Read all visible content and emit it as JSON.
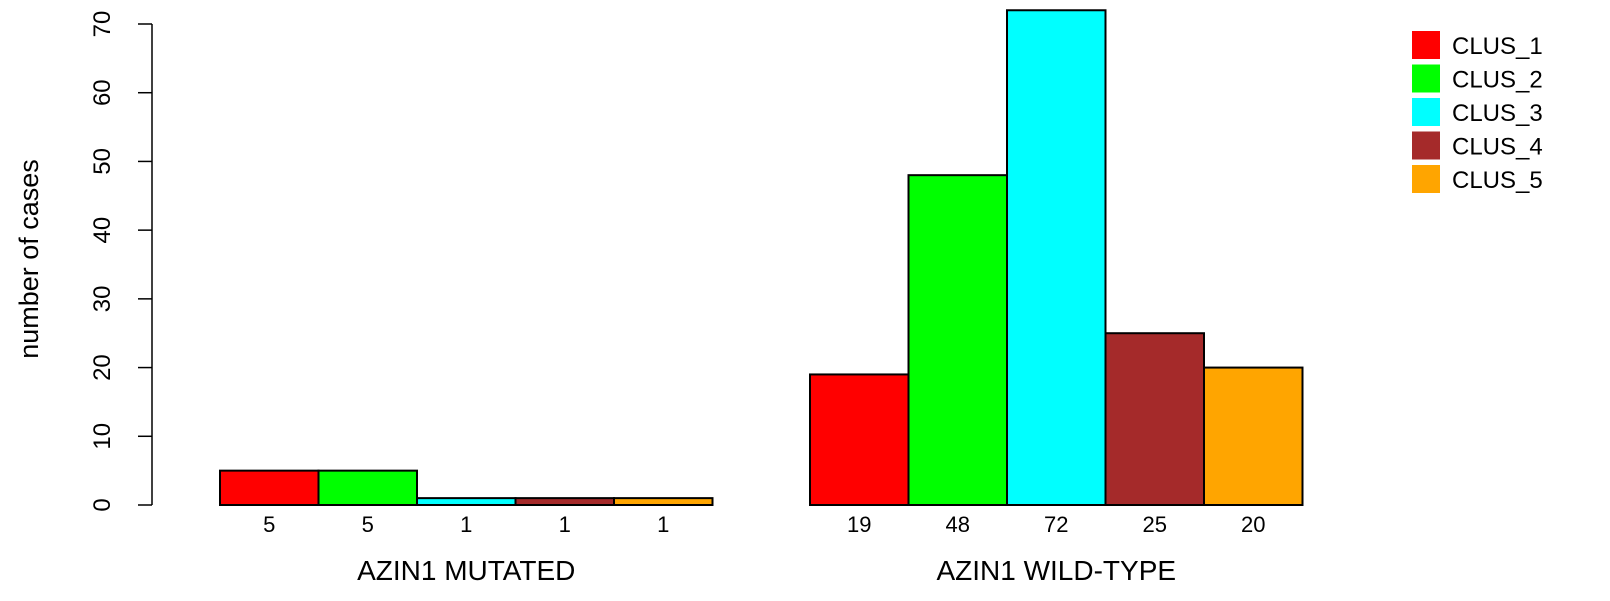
{
  "chart_data": {
    "type": "bar",
    "ylabel": "number of cases",
    "ylim": [
      0,
      70
    ],
    "yticks": [
      0,
      10,
      20,
      30,
      40,
      50,
      60,
      70
    ],
    "grid": false,
    "legend_position": "top-right",
    "groups": [
      {
        "label": "AZIN1 MUTATED",
        "values": [
          5,
          5,
          1,
          1,
          1
        ],
        "value_labels": [
          "5",
          "5",
          "1",
          "1",
          "1"
        ]
      },
      {
        "label": "AZIN1 WILD-TYPE",
        "values": [
          19,
          48,
          72,
          25,
          20
        ],
        "value_labels": [
          "19",
          "48",
          "72",
          "25",
          "20"
        ]
      }
    ],
    "series": [
      {
        "name": "CLUS_1",
        "color": "#ff0000"
      },
      {
        "name": "CLUS_2",
        "color": "#00ff00"
      },
      {
        "name": "CLUS_3",
        "color": "#00ffff"
      },
      {
        "name": "CLUS_4",
        "color": "#a52a2a"
      },
      {
        "name": "CLUS_5",
        "color": "#ffa500"
      }
    ]
  }
}
